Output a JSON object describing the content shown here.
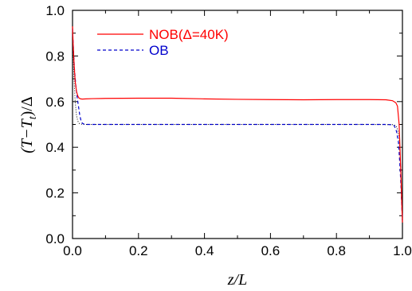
{
  "chart_data": {
    "type": "line",
    "title": "",
    "xlabel": "z/L",
    "ylabel": "(T−T_t)/Δ",
    "ylabel_parts": {
      "pre": "(T−T",
      "sub": "t",
      "post": ")/Δ"
    },
    "xlim": [
      0.0,
      1.0
    ],
    "ylim": [
      0.0,
      1.0
    ],
    "x_ticks": [
      "0.0",
      "0.2",
      "0.4",
      "0.6",
      "0.8",
      "1.0"
    ],
    "y_ticks": [
      "0.0",
      "0.2",
      "0.4",
      "0.6",
      "0.8",
      "1.0"
    ],
    "grid": false,
    "legend_position": "top-left",
    "series": [
      {
        "name": "NOB(Δ=40K)",
        "color": "#ff0000",
        "line_style": "solid",
        "x": [
          0.0,
          0.002,
          0.005,
          0.008,
          0.012,
          0.016,
          0.02,
          0.025,
          0.03,
          0.04,
          0.06,
          0.1,
          0.2,
          0.3,
          0.4,
          0.5,
          0.6,
          0.7,
          0.8,
          0.9,
          0.95,
          0.97,
          0.98,
          0.985,
          0.99,
          0.993,
          0.996,
          0.998,
          1.0
        ],
        "y": [
          0.93,
          0.85,
          0.76,
          0.69,
          0.645,
          0.625,
          0.615,
          0.612,
          0.611,
          0.612,
          0.613,
          0.614,
          0.615,
          0.615,
          0.612,
          0.61,
          0.609,
          0.608,
          0.609,
          0.609,
          0.608,
          0.604,
          0.595,
          0.58,
          0.5,
          0.38,
          0.25,
          0.15,
          0.07
        ]
      },
      {
        "name": "OB",
        "color": "#0000cc",
        "line_style": "dashed",
        "x": [
          0.0,
          0.003,
          0.006,
          0.01,
          0.014,
          0.018,
          0.022,
          0.026,
          0.03,
          0.035,
          0.04,
          0.06,
          0.1,
          0.2,
          0.3,
          0.4,
          0.5,
          0.6,
          0.7,
          0.8,
          0.9,
          0.95,
          0.965,
          0.975,
          0.982,
          0.988,
          0.992,
          0.996,
          0.998,
          1.0
        ],
        "y": [
          0.92,
          0.82,
          0.74,
          0.67,
          0.62,
          0.58,
          0.54,
          0.515,
          0.505,
          0.501,
          0.5,
          0.5,
          0.5,
          0.5,
          0.5,
          0.5,
          0.5,
          0.5,
          0.5,
          0.5,
          0.5,
          0.5,
          0.499,
          0.495,
          0.47,
          0.42,
          0.33,
          0.22,
          0.14,
          0.08
        ]
      },
      {
        "name": "",
        "color": "#000000",
        "line_style": "dotted",
        "x": [
          0.0,
          0.004,
          0.008,
          0.012,
          0.016,
          0.02,
          0.03,
          0.05,
          0.1,
          0.5,
          0.9,
          0.97,
          0.98,
          0.985,
          0.99,
          0.994,
          0.997,
          1.0
        ],
        "y": [
          0.9,
          0.72,
          0.6,
          0.54,
          0.515,
          0.505,
          0.5,
          0.5,
          0.5,
          0.5,
          0.5,
          0.499,
          0.495,
          0.48,
          0.44,
          0.33,
          0.2,
          0.07
        ]
      }
    ]
  }
}
